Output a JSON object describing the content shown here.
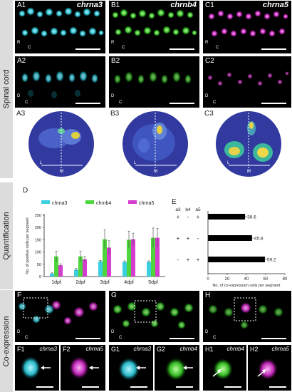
{
  "sections": {
    "spinal_cord": "Spinal cord",
    "quantification": "Quantification",
    "coexpression": "Co-expression"
  },
  "panels": {
    "A1": {
      "label": "A1",
      "gene": "chrna3",
      "dir_r": "R",
      "dir_c": "C"
    },
    "B1": {
      "label": "B1",
      "gene": "chrnb4",
      "dir_r": "R",
      "dir_c": "C"
    },
    "C1": {
      "label": "C1",
      "gene": "chrna5",
      "dir_r": "R",
      "dir_c": "C"
    },
    "A2": {
      "label": "A2",
      "dir_d": "D",
      "dir_c": "C"
    },
    "B2": {
      "label": "B2",
      "dir_d": "D",
      "dir_c": "C"
    },
    "C2": {
      "label": "C2",
      "dir_d": "D",
      "dir_c": "C"
    },
    "A3": {
      "label": "A3",
      "l": "L",
      "m": "M"
    },
    "B3": {
      "label": "B3",
      "l": "L",
      "m": "M"
    },
    "C3": {
      "label": "C3",
      "l": "L",
      "m": "M"
    },
    "F": {
      "label": "F",
      "dir_d": "D",
      "dir_c": "C"
    },
    "G": {
      "label": "G",
      "dir_d": "D",
      "dir_c": "C"
    },
    "H": {
      "label": "H",
      "dir_d": "D",
      "dir_c": "C"
    },
    "F1": {
      "label": "F1",
      "gene": "chrna3"
    },
    "F2": {
      "label": "F2",
      "gene": "chrna5"
    },
    "G1": {
      "label": "G1",
      "gene": "chrna3"
    },
    "G2": {
      "label": "G2",
      "gene": "chrnb4"
    },
    "H1": {
      "label": "H1",
      "gene": "chrnb4"
    },
    "H2": {
      "label": "H2",
      "gene": "chrna5"
    }
  },
  "colors": {
    "chrna3": "#3ccfe0",
    "chrnb4": "#4ed63c",
    "chrna5": "#d63ccf",
    "bar_black": "#000000"
  },
  "chart_data": [
    {
      "type": "bar",
      "panel_label": "D",
      "categories": [
        "1dpf",
        "2dpf",
        "3dpf",
        "4dpf",
        "5dpf"
      ],
      "series": [
        {
          "name": "chrna3",
          "values": [
            12,
            28,
            62,
            60,
            60
          ],
          "errors": [
            3,
            5,
            4,
            4,
            4
          ]
        },
        {
          "name": "chrnb4",
          "values": [
            82,
            82,
            152,
            150,
            158
          ],
          "errors": [
            22,
            22,
            38,
            35,
            40
          ]
        },
        {
          "name": "chrna5",
          "values": [
            46,
            70,
            118,
            152,
            158
          ],
          "errors": [
            6,
            12,
            28,
            25,
            38
          ]
        }
      ],
      "ylabel": "No. of positive cells per segment",
      "yticks": [
        0,
        50,
        100,
        150,
        200,
        250
      ],
      "ylim": [
        0,
        250
      ],
      "legend": "top"
    },
    {
      "type": "bar",
      "orientation": "horizontal",
      "panel_label": "E",
      "column_headers": [
        "a3",
        "b4",
        "a5"
      ],
      "rows": [
        {
          "signs": [
            "+",
            "-",
            "+"
          ],
          "value": 38.6,
          "label": "38.6"
        },
        {
          "signs": [
            "+",
            "+",
            "-"
          ],
          "value": 45.8,
          "label": "45.8"
        },
        {
          "signs": [
            "-",
            "+",
            "+"
          ],
          "value": 59.2,
          "label": "59.2"
        }
      ],
      "xlabel": "No. of co-expression cells per segment",
      "xticks": [
        0,
        20,
        40,
        60,
        80
      ],
      "xlim": [
        0,
        80
      ]
    }
  ]
}
